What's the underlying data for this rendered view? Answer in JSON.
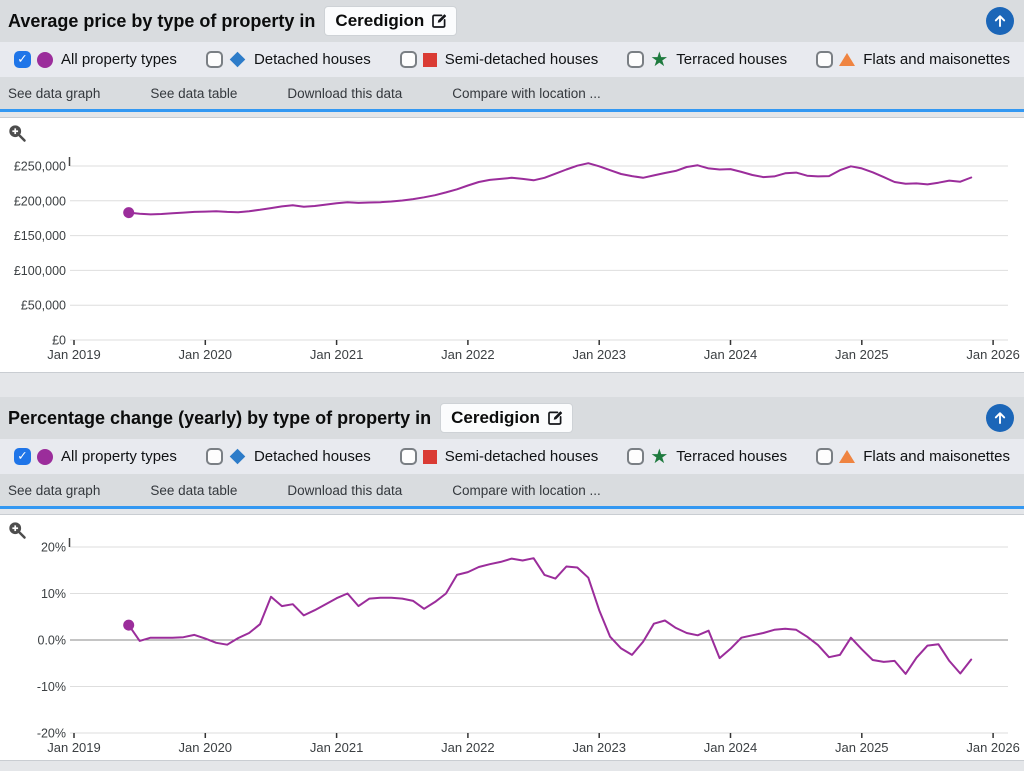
{
  "colors": {
    "accent_purple": "#9b2d9b",
    "tab_underline_blue": "#3398f2",
    "checkbox_checked_blue": "#1f75e8",
    "scroll_top_button_blue": "#1b66b8",
    "zero_line_gray": "#8a8a8a",
    "gridline_gray": "#dedede"
  },
  "icons": {
    "check": "✓",
    "star": "★"
  },
  "legend": {
    "items": [
      {
        "label": "All property types",
        "marker": "circle",
        "color": "#9b2d9b",
        "checked": true
      },
      {
        "label": "Detached houses",
        "marker": "diamond",
        "color": "#2d7cc9",
        "checked": false
      },
      {
        "label": "Semi-detached houses",
        "marker": "square",
        "color": "#da3b34",
        "checked": false
      },
      {
        "label": "Terraced houses",
        "marker": "star",
        "color": "#1e7a3e",
        "checked": false
      },
      {
        "label": "Flats and maisonettes",
        "marker": "triangle",
        "color": "#ef8441",
        "checked": false
      }
    ]
  },
  "tabs": [
    "See data graph",
    "See data table",
    "Download this data",
    "Compare with location ..."
  ],
  "sections": [
    {
      "title": "Average price by type of property in",
      "location": "Ceredigion",
      "chart_data": {
        "type": "line",
        "x_tick_labels": [
          "Jan 2019",
          "Jan 2020",
          "Jan 2021",
          "Jan 2022",
          "Jan 2023",
          "Jan 2024",
          "Jan 2025",
          "Jan 2026"
        ],
        "x_tick_month_offsets": [
          0,
          12,
          24,
          36,
          48,
          60,
          72,
          84
        ],
        "ylim": [
          0,
          250000
        ],
        "zero_line": false,
        "grid": true,
        "y_ticks": [
          {
            "value": 250000,
            "label": "£250,000"
          },
          {
            "value": 200000,
            "label": "£200,000"
          },
          {
            "value": 150000,
            "label": "£150,000"
          },
          {
            "value": 100000,
            "label": "£100,000"
          },
          {
            "value": 50000,
            "label": "£50,000"
          },
          {
            "value": 0,
            "label": "£0"
          }
        ],
        "series": [
          {
            "name": "All property types",
            "color": "#9b2d9b",
            "start_month_offset": 5,
            "values": [
              183000,
              181500,
              180500,
              181000,
              182000,
              183000,
              184000,
              184500,
              185000,
              184000,
              183500,
              185000,
              187000,
              189500,
              192000,
              193500,
              191500,
              192500,
              194500,
              196500,
              198000,
              197000,
              197500,
              198000,
              199000,
              200500,
              202500,
              205000,
              208000,
              212000,
              216500,
              222000,
              227000,
              230000,
              231500,
              233000,
              231500,
              229500,
              233000,
              239000,
              245000,
              250500,
              254000,
              249500,
              244000,
              238500,
              235500,
              233000,
              236500,
              240000,
              243000,
              248500,
              251000,
              246500,
              245000,
              245500,
              241500,
              237000,
              234000,
              235000,
              239500,
              240500,
              236000,
              235000,
              235500,
              244000,
              249500,
              246500,
              241000,
              234000,
              227000,
              224500,
              225000,
              223500,
              226000,
              229000,
              227500,
              233500
            ]
          }
        ]
      }
    },
    {
      "title": "Percentage change (yearly) by type of property in",
      "location": "Ceredigion",
      "chart_data": {
        "type": "line",
        "x_tick_labels": [
          "Jan 2019",
          "Jan 2020",
          "Jan 2021",
          "Jan 2022",
          "Jan 2023",
          "Jan 2024",
          "Jan 2025",
          "Jan 2026"
        ],
        "x_tick_month_offsets": [
          0,
          12,
          24,
          36,
          48,
          60,
          72,
          84
        ],
        "ylim": [
          -20,
          20
        ],
        "zero_line": true,
        "grid": true,
        "y_ticks": [
          {
            "value": 20,
            "label": "20%"
          },
          {
            "value": 10,
            "label": "10%"
          },
          {
            "value": 0,
            "label": "0.0%"
          },
          {
            "value": -10,
            "label": "-10%"
          },
          {
            "value": -20,
            "label": "-20%"
          }
        ],
        "series": [
          {
            "name": "All property types",
            "color": "#9b2d9b",
            "start_month_offset": 5,
            "values": [
              3.2,
              -0.2,
              0.5,
              0.5,
              0.5,
              0.6,
              1.1,
              0.3,
              -0.6,
              -1.0,
              0.4,
              1.5,
              3.4,
              9.3,
              7.3,
              7.7,
              5.3,
              6.4,
              7.7,
              9.0,
              10.0,
              7.3,
              8.9,
              9.1,
              9.1,
              8.9,
              8.4,
              6.7,
              8.2,
              10.0,
              14.0,
              14.6,
              15.7,
              16.3,
              16.8,
              17.5,
              17.1,
              17.6,
              14.0,
              13.2,
              15.8,
              15.6,
              13.4,
              6.4,
              0.7,
              -1.8,
              -3.2,
              -0.4,
              3.5,
              4.2,
              2.6,
              1.5,
              1.0,
              2.0,
              -3.9,
              -1.9,
              0.5,
              1.0,
              1.5,
              2.2,
              2.4,
              2.2,
              0.7,
              -1.1,
              -3.7,
              -3.2,
              0.5,
              -2.0,
              -4.3,
              -4.7,
              -4.5,
              -7.3,
              -3.8,
              -1.2,
              -0.9,
              -4.5,
              -7.2,
              -4.2
            ]
          }
        ]
      }
    }
  ]
}
